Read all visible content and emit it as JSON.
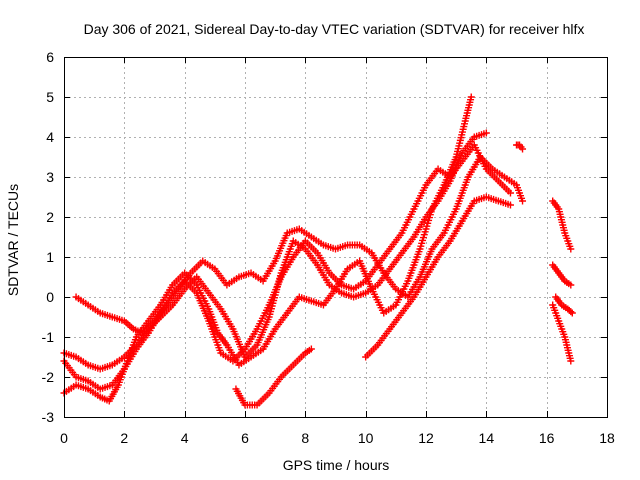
{
  "chart_data": {
    "type": "scatter",
    "title": "Day 306 of 2021, Sidereal Day-to-day VTEC variation (SDTVAR) for receiver hlfx",
    "xlabel": "GPS time / hours",
    "ylabel": "SDTVAR / TECUs",
    "xlim": [
      0,
      18
    ],
    "ylim": [
      -3,
      6
    ],
    "grid": true,
    "legend": "none",
    "marker": "plus",
    "series_color": "#ff0000",
    "x_ticks": [
      "0",
      "2",
      "4",
      "6",
      "8",
      "10",
      "12",
      "14",
      "16",
      "18"
    ],
    "y_ticks": [
      "-3",
      "-2",
      "-1",
      "0",
      "1",
      "2",
      "3",
      "4",
      "5",
      "6"
    ],
    "traces": [
      [
        [
          0.0,
          -2.4
        ],
        [
          0.4,
          -2.2
        ],
        [
          0.8,
          -2.3
        ],
        [
          1.2,
          -2.5
        ],
        [
          1.5,
          -2.6
        ],
        [
          1.8,
          -2.2
        ],
        [
          2.1,
          -1.6
        ],
        [
          2.4,
          -1.0
        ],
        [
          2.8,
          -0.6
        ],
        [
          3.2,
          -0.2
        ],
        [
          3.6,
          0.3
        ],
        [
          4.0,
          0.6
        ],
        [
          4.4,
          0.3
        ],
        [
          4.8,
          -0.3
        ],
        [
          5.1,
          -0.9
        ],
        [
          5.4,
          -1.2
        ],
        [
          5.8,
          -1.7
        ],
        [
          6.2,
          -1.5
        ],
        [
          6.6,
          -1.3
        ],
        [
          7.0,
          -0.8
        ],
        [
          7.4,
          -0.4
        ],
        [
          7.8,
          0.0
        ],
        [
          8.2,
          -0.1
        ],
        [
          8.6,
          -0.2
        ],
        [
          9.0,
          0.2
        ],
        [
          9.4,
          0.7
        ],
        [
          9.8,
          0.9
        ],
        [
          10.2,
          0.2
        ],
        [
          10.6,
          -0.4
        ],
        [
          11.0,
          -0.2
        ],
        [
          11.4,
          0.4
        ],
        [
          11.8,
          1.2
        ],
        [
          12.2,
          2.2
        ],
        [
          12.6,
          2.8
        ],
        [
          13.0,
          3.5
        ],
        [
          13.3,
          4.4
        ],
        [
          13.5,
          5.0
        ]
      ],
      [
        [
          0.0,
          -1.4
        ],
        [
          0.4,
          -1.5
        ],
        [
          0.8,
          -1.7
        ],
        [
          1.2,
          -1.8
        ],
        [
          1.6,
          -1.7
        ],
        [
          2.0,
          -1.5
        ],
        [
          2.4,
          -1.2
        ],
        [
          2.8,
          -0.8
        ],
        [
          3.2,
          -0.5
        ],
        [
          3.6,
          -0.2
        ],
        [
          4.0,
          0.2
        ],
        [
          4.4,
          0.5
        ],
        [
          4.8,
          0.1
        ],
        [
          5.2,
          -0.3
        ],
        [
          5.6,
          -0.8
        ],
        [
          6.0,
          -1.5
        ],
        [
          6.4,
          -1.2
        ],
        [
          6.8,
          -0.5
        ],
        [
          7.2,
          0.6
        ],
        [
          7.6,
          1.4
        ],
        [
          8.0,
          1.2
        ],
        [
          8.4,
          0.8
        ],
        [
          8.8,
          0.3
        ],
        [
          9.2,
          0.1
        ],
        [
          9.6,
          0.0
        ],
        [
          10.0,
          0.1
        ],
        [
          10.4,
          0.3
        ],
        [
          10.8,
          0.7
        ],
        [
          11.2,
          1.1
        ],
        [
          11.6,
          1.5
        ],
        [
          12.0,
          2.0
        ],
        [
          12.4,
          2.4
        ],
        [
          12.8,
          2.9
        ],
        [
          13.2,
          3.6
        ],
        [
          13.6,
          4.0
        ],
        [
          14.0,
          4.1
        ]
      ],
      [
        [
          0.4,
          0.0
        ],
        [
          0.8,
          -0.2
        ],
        [
          1.2,
          -0.4
        ],
        [
          1.6,
          -0.5
        ],
        [
          2.0,
          -0.6
        ],
        [
          2.3,
          -0.8
        ],
        [
          2.6,
          -0.9
        ],
        [
          3.0,
          -0.6
        ],
        [
          3.4,
          -0.2
        ],
        [
          3.8,
          0.2
        ],
        [
          4.2,
          0.6
        ],
        [
          4.6,
          0.9
        ],
        [
          5.0,
          0.7
        ],
        [
          5.4,
          0.3
        ],
        [
          5.8,
          0.5
        ],
        [
          6.2,
          0.6
        ],
        [
          6.6,
          0.4
        ],
        [
          7.0,
          0.9
        ],
        [
          7.4,
          1.6
        ],
        [
          7.8,
          1.7
        ],
        [
          8.2,
          1.5
        ],
        [
          8.6,
          1.3
        ],
        [
          9.0,
          1.2
        ],
        [
          9.4,
          1.3
        ],
        [
          9.8,
          1.3
        ],
        [
          10.2,
          1.1
        ],
        [
          10.6,
          0.6
        ],
        [
          11.0,
          0.2
        ],
        [
          11.4,
          0.0
        ],
        [
          11.8,
          0.5
        ],
        [
          12.2,
          1.2
        ],
        [
          12.6,
          1.6
        ],
        [
          13.0,
          2.2
        ],
        [
          13.4,
          3.0
        ],
        [
          13.8,
          3.5
        ],
        [
          14.2,
          3.2
        ],
        [
          14.6,
          3.0
        ],
        [
          15.0,
          2.8
        ],
        [
          15.2,
          2.4
        ]
      ],
      [
        [
          0.0,
          -1.6
        ],
        [
          0.4,
          -2.0
        ],
        [
          0.8,
          -2.1
        ],
        [
          1.2,
          -2.3
        ],
        [
          1.6,
          -2.2
        ],
        [
          2.0,
          -1.8
        ],
        [
          2.4,
          -1.3
        ],
        [
          2.8,
          -0.9
        ],
        [
          3.2,
          -0.4
        ],
        [
          3.6,
          0.1
        ],
        [
          4.0,
          0.4
        ],
        [
          4.4,
          0.1
        ],
        [
          4.8,
          -0.6
        ],
        [
          5.2,
          -1.4
        ],
        [
          5.6,
          -1.6
        ],
        [
          6.0,
          -1.3
        ],
        [
          6.4,
          -0.8
        ],
        [
          6.8,
          -0.2
        ],
        [
          7.2,
          0.5
        ],
        [
          7.6,
          1.0
        ],
        [
          8.0,
          1.4
        ],
        [
          8.4,
          1.1
        ],
        [
          8.8,
          0.6
        ],
        [
          9.2,
          0.3
        ],
        [
          9.6,
          0.2
        ],
        [
          10.0,
          0.4
        ],
        [
          10.4,
          0.8
        ],
        [
          10.8,
          1.2
        ],
        [
          11.2,
          1.6
        ],
        [
          11.6,
          2.2
        ],
        [
          12.0,
          2.8
        ],
        [
          12.4,
          3.2
        ],
        [
          12.8,
          3.0
        ],
        [
          13.2,
          3.4
        ],
        [
          13.6,
          3.8
        ],
        [
          14.0,
          3.2
        ],
        [
          14.4,
          2.9
        ],
        [
          14.8,
          2.6
        ]
      ],
      [
        [
          5.7,
          -2.3
        ],
        [
          6.0,
          -2.7
        ],
        [
          6.4,
          -2.7
        ],
        [
          6.8,
          -2.4
        ],
        [
          7.2,
          -2.0
        ],
        [
          7.6,
          -1.7
        ],
        [
          8.0,
          -1.4
        ],
        [
          8.2,
          -1.3
        ]
      ],
      [
        [
          10.0,
          -1.5
        ],
        [
          10.4,
          -1.2
        ],
        [
          10.8,
          -0.8
        ],
        [
          11.2,
          -0.4
        ],
        [
          11.6,
          0.0
        ],
        [
          12.0,
          0.5
        ],
        [
          12.4,
          1.0
        ],
        [
          12.8,
          1.4
        ],
        [
          13.2,
          1.9
        ],
        [
          13.6,
          2.4
        ],
        [
          14.0,
          2.5
        ],
        [
          14.4,
          2.4
        ],
        [
          14.8,
          2.3
        ]
      ],
      [
        [
          16.2,
          2.4
        ],
        [
          16.4,
          2.2
        ],
        [
          16.6,
          1.6
        ],
        [
          16.8,
          1.2
        ]
      ],
      [
        [
          16.2,
          0.8
        ],
        [
          16.4,
          0.6
        ],
        [
          16.6,
          0.4
        ],
        [
          16.8,
          0.3
        ]
      ],
      [
        [
          16.2,
          -0.2
        ],
        [
          16.4,
          -0.6
        ],
        [
          16.6,
          -1.0
        ],
        [
          16.8,
          -1.6
        ]
      ],
      [
        [
          16.3,
          0.0
        ],
        [
          16.5,
          -0.2
        ],
        [
          16.7,
          -0.3
        ],
        [
          16.85,
          -0.4
        ]
      ],
      [
        [
          15.0,
          3.8
        ],
        [
          15.1,
          3.8
        ],
        [
          15.2,
          3.7
        ]
      ]
    ]
  }
}
